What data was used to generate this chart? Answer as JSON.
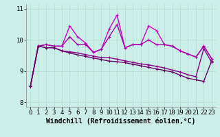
{
  "xlabel": "Windchill (Refroidissement éolien,°C)",
  "x_values": [
    0,
    1,
    2,
    3,
    4,
    5,
    6,
    7,
    8,
    9,
    10,
    11,
    12,
    13,
    14,
    15,
    16,
    17,
    18,
    19,
    20,
    21,
    22,
    23
  ],
  "lines": [
    {
      "y": [
        8.5,
        9.8,
        9.85,
        9.8,
        9.8,
        10.45,
        10.1,
        9.9,
        9.6,
        9.7,
        10.35,
        10.8,
        9.75,
        9.85,
        9.85,
        10.45,
        10.3,
        9.85,
        9.8,
        9.65,
        9.55,
        9.45,
        9.8,
        9.4
      ],
      "color": "#cc00cc",
      "linewidth": 1.0,
      "marker": "+"
    },
    {
      "y": [
        8.5,
        9.8,
        9.85,
        9.8,
        9.8,
        10.1,
        9.85,
        9.85,
        9.6,
        9.7,
        10.1,
        10.5,
        9.75,
        9.85,
        9.85,
        10.0,
        9.85,
        9.85,
        9.8,
        9.65,
        9.55,
        9.45,
        9.8,
        9.4
      ],
      "color": "#aa00aa",
      "linewidth": 1.0,
      "marker": "+"
    },
    {
      "y": [
        8.5,
        9.8,
        9.75,
        9.75,
        9.65,
        9.62,
        9.58,
        9.53,
        9.48,
        9.43,
        9.43,
        9.38,
        9.33,
        9.28,
        9.23,
        9.2,
        9.15,
        9.1,
        9.03,
        8.97,
        8.88,
        8.82,
        9.72,
        9.28
      ],
      "color": "#880088",
      "linewidth": 1.0,
      "marker": "+"
    },
    {
      "y": [
        8.5,
        9.8,
        9.75,
        9.75,
        9.65,
        9.58,
        9.52,
        9.47,
        9.42,
        9.37,
        9.32,
        9.3,
        9.27,
        9.22,
        9.17,
        9.12,
        9.07,
        9.02,
        8.97,
        8.87,
        8.77,
        8.72,
        8.67,
        9.33
      ],
      "color": "#660066",
      "linewidth": 1.0,
      "marker": "+"
    }
  ],
  "xlim": [
    -0.5,
    23.5
  ],
  "ylim": [
    7.85,
    11.15
  ],
  "yticks": [
    8,
    9,
    10,
    11
  ],
  "xticks": [
    0,
    1,
    2,
    3,
    4,
    5,
    6,
    7,
    8,
    9,
    10,
    11,
    12,
    13,
    14,
    15,
    16,
    17,
    18,
    19,
    20,
    21,
    22,
    23
  ],
  "bg_color": "#cceee8",
  "grid_color": "#aaddcc",
  "tick_fontsize": 6.5,
  "xlabel_fontsize": 7
}
